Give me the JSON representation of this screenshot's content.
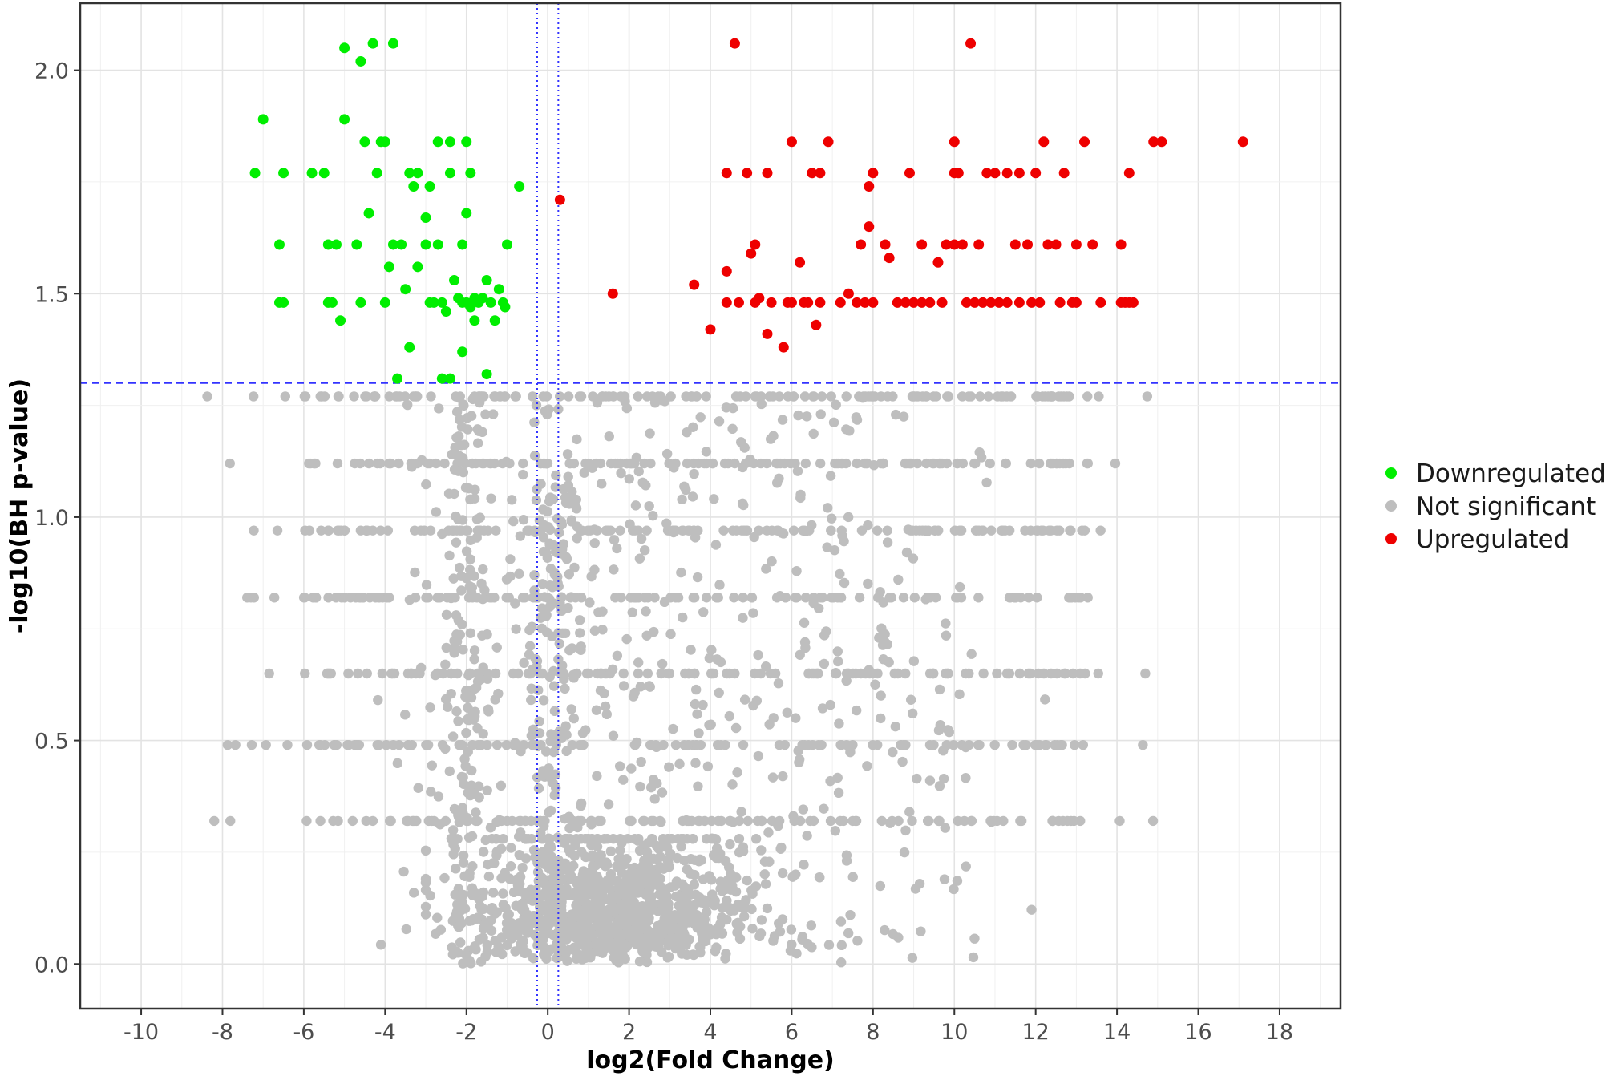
{
  "chart_data": {
    "type": "scatter",
    "title": "",
    "xlabel": "log2(Fold Change)",
    "ylabel": "-log10(BH p-value)",
    "xlim": [
      -11.5,
      19.5
    ],
    "ylim": [
      -0.1,
      2.15
    ],
    "xticks": [
      -10,
      -8,
      -6,
      -4,
      -2,
      0,
      2,
      4,
      6,
      8,
      10,
      12,
      14,
      16,
      18
    ],
    "yticks": [
      0.0,
      0.5,
      1.0,
      1.5,
      2.0
    ],
    "xtick_labels": [
      "-10",
      "-8",
      "-6",
      "-4",
      "-2",
      "0",
      "2",
      "4",
      "6",
      "8",
      "10",
      "12",
      "14",
      "16",
      "18"
    ],
    "ytick_labels": [
      "0.0",
      "0.5",
      "1.0",
      "1.5",
      "2.0"
    ],
    "grid": true,
    "legend_position": "right",
    "thresholds": {
      "vertical_dotted": [
        -0.26,
        0.26
      ],
      "horizontal_dashed": 1.3,
      "color": "#3333ff"
    },
    "series": [
      {
        "name": "Downregulated",
        "color": "#00ee00",
        "points": [
          [
            -7.0,
            1.89
          ],
          [
            -7.2,
            1.77
          ],
          [
            -6.5,
            1.77
          ],
          [
            -6.6,
            1.61
          ],
          [
            -6.6,
            1.48
          ],
          [
            -6.5,
            1.48
          ],
          [
            -5.8,
            1.77
          ],
          [
            -5.5,
            1.77
          ],
          [
            -5.4,
            1.61
          ],
          [
            -5.2,
            1.61
          ],
          [
            -5.4,
            1.48
          ],
          [
            -5.3,
            1.48
          ],
          [
            -5.1,
            1.44
          ],
          [
            -5.0,
            2.05
          ],
          [
            -5.0,
            1.89
          ],
          [
            -4.7,
            1.61
          ],
          [
            -4.6,
            2.02
          ],
          [
            -4.5,
            1.84
          ],
          [
            -4.3,
            2.06
          ],
          [
            -4.4,
            1.68
          ],
          [
            -4.2,
            1.77
          ],
          [
            -4.1,
            1.84
          ],
          [
            -4.0,
            1.84
          ],
          [
            -4.0,
            1.48
          ],
          [
            -3.8,
            2.06
          ],
          [
            -3.9,
            1.56
          ],
          [
            -3.8,
            1.61
          ],
          [
            -3.6,
            1.61
          ],
          [
            -3.5,
            1.51
          ],
          [
            -3.4,
            1.77
          ],
          [
            -3.3,
            1.74
          ],
          [
            -3.2,
            1.77
          ],
          [
            -3.2,
            1.56
          ],
          [
            -3.0,
            1.61
          ],
          [
            -3.0,
            1.67
          ],
          [
            -2.9,
            1.48
          ],
          [
            -2.9,
            1.74
          ],
          [
            -2.7,
            1.84
          ],
          [
            -2.7,
            1.61
          ],
          [
            -2.6,
            1.48
          ],
          [
            -2.4,
            1.84
          ],
          [
            -2.4,
            1.77
          ],
          [
            -2.3,
            1.53
          ],
          [
            -2.2,
            1.49
          ],
          [
            -2.1,
            1.61
          ],
          [
            -2.1,
            1.48
          ],
          [
            -2.0,
            1.84
          ],
          [
            -2.0,
            1.68
          ],
          [
            -2.0,
            1.48
          ],
          [
            -1.9,
            1.77
          ],
          [
            -1.9,
            1.47
          ],
          [
            -1.8,
            1.49
          ],
          [
            -1.7,
            1.48
          ],
          [
            -1.6,
            1.49
          ],
          [
            -1.5,
            1.53
          ],
          [
            -1.4,
            1.48
          ],
          [
            -1.3,
            1.44
          ],
          [
            -1.2,
            1.51
          ],
          [
            -1.1,
            1.48
          ],
          [
            -1.05,
            1.47
          ],
          [
            -1.0,
            1.61
          ],
          [
            -0.7,
            1.74
          ],
          [
            -2.1,
            1.37
          ],
          [
            -2.6,
            1.31
          ],
          [
            -2.4,
            1.31
          ],
          [
            -1.5,
            1.32
          ],
          [
            -3.7,
            1.31
          ],
          [
            -3.4,
            1.38
          ],
          [
            -4.6,
            1.48
          ],
          [
            -2.8,
            1.48
          ],
          [
            -2.5,
            1.46
          ],
          [
            -1.8,
            1.44
          ]
        ]
      },
      {
        "name": "Not significant",
        "color": "#bebebe",
        "points": []
      },
      {
        "name": "Upregulated",
        "color": "#ee0000",
        "points": [
          [
            0.3,
            1.71
          ],
          [
            1.6,
            1.5
          ],
          [
            3.6,
            1.52
          ],
          [
            4.0,
            1.42
          ],
          [
            4.4,
            1.77
          ],
          [
            4.4,
            1.55
          ],
          [
            4.4,
            1.48
          ],
          [
            4.6,
            2.06
          ],
          [
            4.7,
            1.48
          ],
          [
            4.9,
            1.77
          ],
          [
            5.0,
            1.59
          ],
          [
            5.1,
            1.61
          ],
          [
            5.1,
            1.48
          ],
          [
            5.2,
            1.49
          ],
          [
            5.4,
            1.77
          ],
          [
            5.4,
            1.41
          ],
          [
            5.5,
            1.48
          ],
          [
            5.8,
            1.38
          ],
          [
            6.0,
            1.84
          ],
          [
            6.2,
            1.57
          ],
          [
            6.3,
            1.48
          ],
          [
            6.5,
            1.77
          ],
          [
            6.6,
            1.43
          ],
          [
            6.7,
            1.77
          ],
          [
            6.9,
            1.84
          ],
          [
            6.7,
            1.48
          ],
          [
            7.4,
            1.5
          ],
          [
            7.7,
            1.61
          ],
          [
            7.9,
            1.74
          ],
          [
            7.9,
            1.65
          ],
          [
            8.0,
            1.77
          ],
          [
            8.0,
            1.48
          ],
          [
            8.3,
            1.61
          ],
          [
            8.4,
            1.58
          ],
          [
            8.9,
            1.77
          ],
          [
            9.2,
            1.61
          ],
          [
            9.2,
            1.48
          ],
          [
            9.6,
            1.57
          ],
          [
            9.8,
            1.61
          ],
          [
            10.0,
            1.84
          ],
          [
            10.0,
            1.77
          ],
          [
            10.1,
            1.77
          ],
          [
            10.0,
            1.61
          ],
          [
            10.2,
            1.61
          ],
          [
            10.4,
            2.06
          ],
          [
            10.6,
            1.61
          ],
          [
            10.8,
            1.77
          ],
          [
            11.0,
            1.77
          ],
          [
            11.3,
            1.77
          ],
          [
            11.5,
            1.61
          ],
          [
            11.6,
            1.77
          ],
          [
            11.8,
            1.61
          ],
          [
            11.9,
            1.48
          ],
          [
            12.0,
            1.77
          ],
          [
            12.2,
            1.84
          ],
          [
            12.3,
            1.61
          ],
          [
            12.5,
            1.61
          ],
          [
            12.7,
            1.77
          ],
          [
            13.0,
            1.61
          ],
          [
            13.2,
            1.84
          ],
          [
            13.4,
            1.61
          ],
          [
            13.6,
            1.48
          ],
          [
            14.1,
            1.61
          ],
          [
            14.1,
            1.48
          ],
          [
            14.3,
            1.77
          ],
          [
            14.4,
            1.48
          ],
          [
            14.9,
            1.84
          ],
          [
            15.1,
            1.84
          ],
          [
            17.1,
            1.84
          ],
          [
            7.2,
            1.48
          ],
          [
            7.6,
            1.48
          ],
          [
            7.8,
            1.48
          ],
          [
            8.6,
            1.48
          ],
          [
            8.8,
            1.48
          ],
          [
            9.0,
            1.48
          ],
          [
            9.4,
            1.48
          ],
          [
            9.7,
            1.48
          ],
          [
            10.3,
            1.48
          ],
          [
            10.5,
            1.48
          ],
          [
            10.7,
            1.48
          ],
          [
            10.9,
            1.48
          ],
          [
            11.1,
            1.48
          ],
          [
            11.3,
            1.48
          ],
          [
            11.6,
            1.48
          ],
          [
            12.1,
            1.48
          ],
          [
            12.6,
            1.48
          ],
          [
            12.9,
            1.48
          ],
          [
            13.0,
            1.48
          ],
          [
            14.3,
            1.48
          ],
          [
            14.2,
            1.48
          ],
          [
            6.0,
            1.48
          ],
          [
            6.4,
            1.48
          ],
          [
            5.9,
            1.48
          ]
        ]
      }
    ]
  },
  "legend": {
    "items": [
      {
        "label": "Downregulated",
        "color": "#00ee00"
      },
      {
        "label": "Not significant",
        "color": "#bebebe"
      },
      {
        "label": "Upregulated",
        "color": "#ee0000"
      }
    ]
  }
}
